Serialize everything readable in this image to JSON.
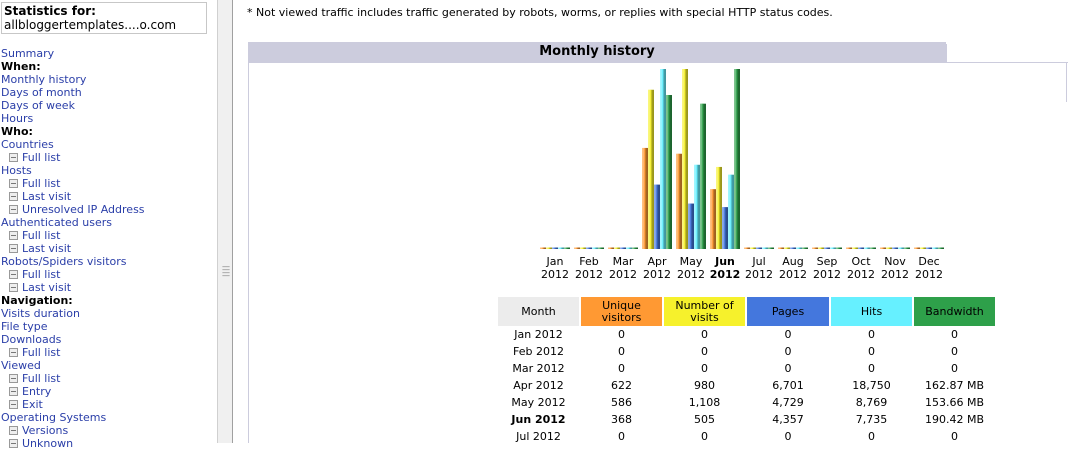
{
  "sidebar": {
    "stats_title": "Statistics for:",
    "site": "allbloggertemplates....o.com",
    "items": [
      {
        "type": "link",
        "label": "Summary"
      },
      {
        "type": "head",
        "label": "When:"
      },
      {
        "type": "link",
        "label": "Monthly history"
      },
      {
        "type": "link",
        "label": "Days of month"
      },
      {
        "type": "link",
        "label": "Days of week"
      },
      {
        "type": "link",
        "label": "Hours"
      },
      {
        "type": "head",
        "label": "Who:"
      },
      {
        "type": "link",
        "label": "Countries"
      },
      {
        "type": "sub",
        "label": "Full list"
      },
      {
        "type": "link",
        "label": "Hosts"
      },
      {
        "type": "sub",
        "label": "Full list"
      },
      {
        "type": "sub",
        "label": "Last visit"
      },
      {
        "type": "sub",
        "label": "Unresolved IP Address"
      },
      {
        "type": "link",
        "label": "Authenticated users"
      },
      {
        "type": "sub",
        "label": "Full list"
      },
      {
        "type": "sub",
        "label": "Last visit"
      },
      {
        "type": "link",
        "label": "Robots/Spiders visitors"
      },
      {
        "type": "sub",
        "label": "Full list"
      },
      {
        "type": "sub",
        "label": "Last visit"
      },
      {
        "type": "head",
        "label": "Navigation:"
      },
      {
        "type": "link",
        "label": "Visits duration"
      },
      {
        "type": "link",
        "label": "File type"
      },
      {
        "type": "link",
        "label": "Downloads"
      },
      {
        "type": "sub",
        "label": "Full list"
      },
      {
        "type": "link",
        "label": "Viewed"
      },
      {
        "type": "sub",
        "label": "Full list"
      },
      {
        "type": "sub",
        "label": "Entry"
      },
      {
        "type": "sub",
        "label": "Exit"
      },
      {
        "type": "link",
        "label": "Operating Systems"
      },
      {
        "type": "sub",
        "label": "Versions"
      },
      {
        "type": "sub",
        "label": "Unknown"
      }
    ]
  },
  "notice": "* Not viewed traffic includes traffic generated by robots, worms, or replies with special HTTP status codes.",
  "panel_title": "Monthly history",
  "colors": {
    "unique_visitors": "#ff9933",
    "visits": "#f6f12c",
    "pages": "#4477dd",
    "hits": "#66f0ff",
    "bandwidth": "#2ea04a"
  },
  "chart_data": {
    "type": "bar",
    "categories": [
      "Jan 2012",
      "Feb 2012",
      "Mar 2012",
      "Apr 2012",
      "May 2012",
      "Jun 2012",
      "Jul 2012",
      "Aug 2012",
      "Sep 2012",
      "Oct 2012",
      "Nov 2012",
      "Dec 2012"
    ],
    "current_month_index": 5,
    "series": [
      {
        "name": "Unique visitors",
        "values": [
          0,
          0,
          0,
          622,
          586,
          368,
          0,
          0,
          0,
          0,
          0,
          0
        ]
      },
      {
        "name": "Number of visits",
        "values": [
          0,
          0,
          0,
          980,
          1108,
          505,
          0,
          0,
          0,
          0,
          0,
          0
        ]
      },
      {
        "name": "Pages",
        "values": [
          0,
          0,
          0,
          6701,
          4729,
          4357,
          0,
          0,
          0,
          0,
          0,
          0
        ]
      },
      {
        "name": "Hits",
        "values": [
          0,
          0,
          0,
          18750,
          8769,
          7735,
          0,
          0,
          0,
          0,
          0,
          0
        ]
      },
      {
        "name": "Bandwidth",
        "values": [
          0,
          0,
          0,
          162.87,
          153.66,
          190.42,
          0,
          0,
          0,
          0,
          0,
          0
        ],
        "unit": "MB"
      }
    ]
  },
  "table": {
    "headers": {
      "month": "Month",
      "uv": "Unique visitors",
      "nv": "Number of visits",
      "pg": "Pages",
      "ht": "Hits",
      "bw": "Bandwidth"
    },
    "rows": [
      {
        "month": "Jan 2012",
        "uv": "0",
        "nv": "0",
        "pg": "0",
        "ht": "0",
        "bw": "0"
      },
      {
        "month": "Feb 2012",
        "uv": "0",
        "nv": "0",
        "pg": "0",
        "ht": "0",
        "bw": "0"
      },
      {
        "month": "Mar 2012",
        "uv": "0",
        "nv": "0",
        "pg": "0",
        "ht": "0",
        "bw": "0"
      },
      {
        "month": "Apr 2012",
        "uv": "622",
        "nv": "980",
        "pg": "6,701",
        "ht": "18,750",
        "bw": "162.87 MB"
      },
      {
        "month": "May 2012",
        "uv": "586",
        "nv": "1,108",
        "pg": "4,729",
        "ht": "8,769",
        "bw": "153.66 MB"
      },
      {
        "month": "Jun 2012",
        "uv": "368",
        "nv": "505",
        "pg": "4,357",
        "ht": "7,735",
        "bw": "190.42 MB",
        "current": true
      },
      {
        "month": "Jul 2012",
        "uv": "0",
        "nv": "0",
        "pg": "0",
        "ht": "0",
        "bw": "0"
      }
    ]
  }
}
